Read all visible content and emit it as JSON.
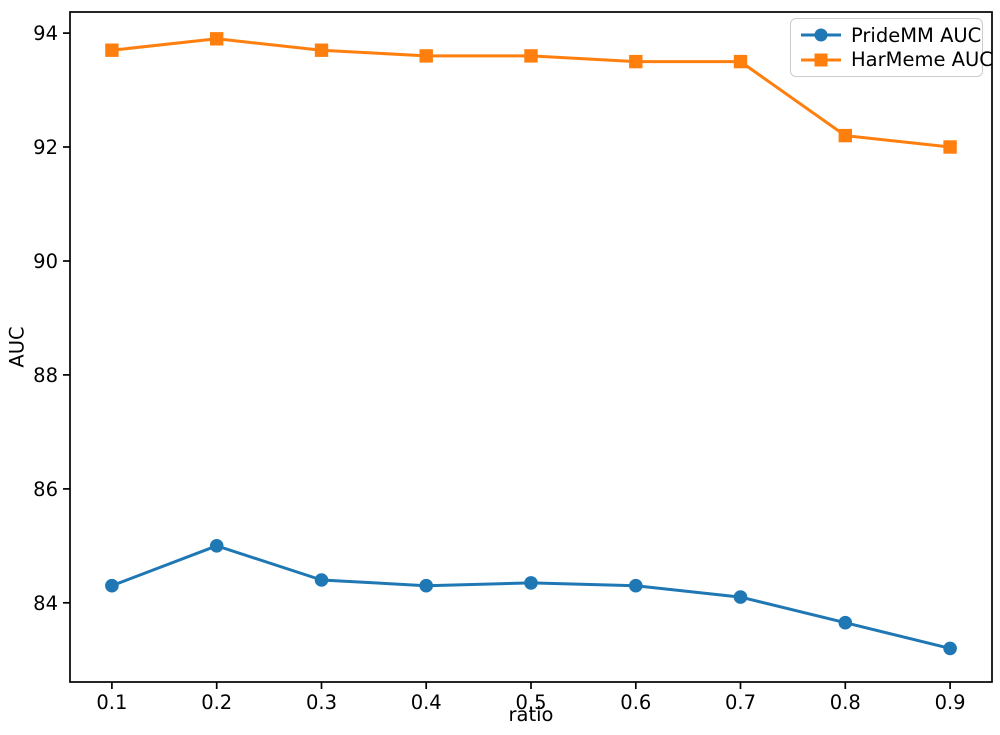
{
  "figure": {
    "background": "#ffffff"
  },
  "chart_data": {
    "type": "line",
    "title": "",
    "xlabel": "ratio",
    "ylabel": "AUC",
    "x": [
      0.1,
      0.2,
      0.3,
      0.4,
      0.5,
      0.6,
      0.7,
      0.8,
      0.9
    ],
    "series": [
      {
        "name": "PrideMM AUC",
        "color": "#1f77b4",
        "marker": "circle",
        "values": [
          84.3,
          85.0,
          84.4,
          84.3,
          84.35,
          84.3,
          84.1,
          83.65,
          83.2
        ]
      },
      {
        "name": "HarMeme AUC",
        "color": "#ff7f0e",
        "marker": "square",
        "values": [
          93.7,
          93.9,
          93.7,
          93.6,
          93.6,
          93.5,
          93.5,
          92.2,
          92.0
        ]
      }
    ],
    "xlim": [
      0.06,
      0.94
    ],
    "ylim": [
      82.61,
      94.37
    ],
    "xticks": {
      "values": [
        0.1,
        0.2,
        0.3,
        0.4,
        0.5,
        0.6,
        0.7,
        0.8,
        0.9
      ],
      "labels": [
        "0.1",
        "0.2",
        "0.3",
        "0.4",
        "0.5",
        "0.6",
        "0.7",
        "0.8",
        "0.9"
      ]
    },
    "yticks": {
      "values": [
        84,
        86,
        88,
        90,
        92,
        94
      ],
      "labels": [
        "84",
        "86",
        "88",
        "90",
        "92",
        "94"
      ]
    },
    "grid": false,
    "legend": {
      "position": "upper right"
    },
    "axis_color": "#000000"
  }
}
